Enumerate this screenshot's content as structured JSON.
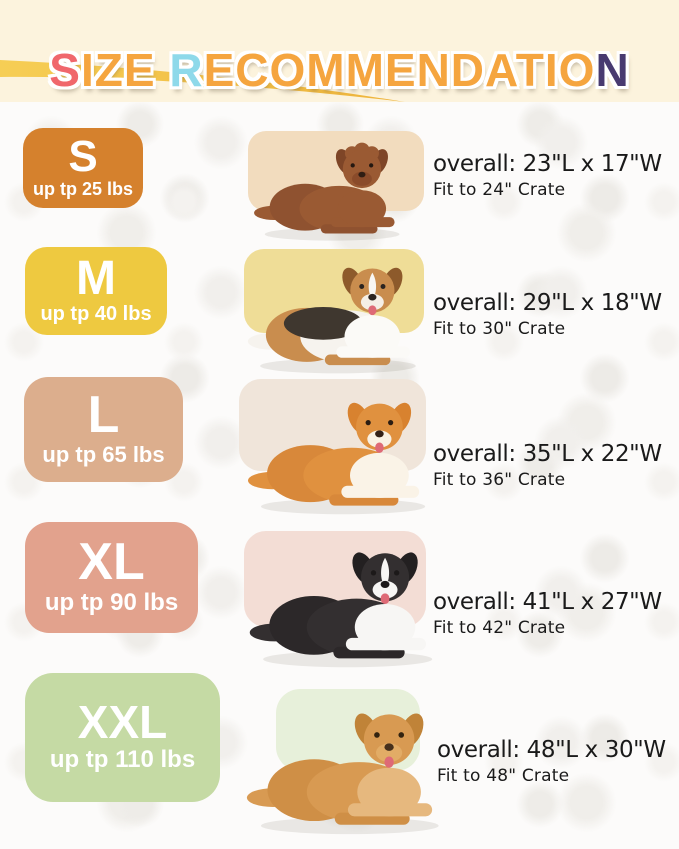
{
  "title": {
    "text": "SIZE RECOMMENDATION",
    "segments": [
      {
        "text": "S",
        "color": "#f0676c"
      },
      {
        "text": "IZE ",
        "color": "#f5a53f"
      },
      {
        "text": "R",
        "color": "#8ed9ea"
      },
      {
        "text": "ECOMMENDATIO",
        "color": "#f5a53f"
      },
      {
        "text": "N",
        "color": "#483a70"
      }
    ]
  },
  "header": {
    "background_color": "#fcf3dd",
    "swoosh_colors": [
      "#f6ce55",
      "#eeb43c"
    ]
  },
  "rows": [
    {
      "size_label": "S",
      "weight_label": "up tp 25 lbs",
      "badge_color": "#d5812d",
      "patch_color": "#f2dcbe",
      "dog_breed": "poodle",
      "dog_colors": {
        "body": "#9a5a33",
        "rear": "#8f5230",
        "chest": "#9a5a33",
        "head": "#9a5a33",
        "ear": "#7e4527",
        "muzzle": "#8a4b2a",
        "nose": "#2f1d13",
        "eye": "#241811",
        "fluff": "#9a5a33"
      },
      "overall": "overall: 23\"L x 17\"W",
      "fit": "Fit to 24\" Crate"
    },
    {
      "size_label": "M",
      "weight_label": "up tp 40 lbs",
      "badge_color": "#eec940",
      "patch_color": "#efdd97",
      "dog_breed": "beagle",
      "dog_colors": {
        "body": "#f6f3ee",
        "rear": "#c98d4e",
        "chest": "#fbfaf7",
        "saddle": "#3f372f",
        "head": "#c98d4e",
        "ear": "#8d5a2b",
        "blaze": "#f8f6f2",
        "muzzle": "#f5efe6",
        "nose": "#2b2420",
        "eye": "#2b2420",
        "tongue": "#de6a76"
      },
      "overall": "overall: 29\"L x 18\"W",
      "fit": "Fit to 30\" Crate"
    },
    {
      "size_label": "L",
      "weight_label": "up tp 65 lbs",
      "badge_color": "#dcae8d",
      "patch_color": "#f0e5da",
      "dog_breed": "shiba-inu",
      "dog_colors": {
        "body": "#e0913f",
        "rear": "#d8883a",
        "chest": "#faf3e7",
        "head": "#e0913f",
        "ear": "#d8822f",
        "muzzle": "#f9f1e3",
        "nose": "#332117",
        "eye": "#2a1c12",
        "tongue": "#de6a76"
      },
      "overall": "overall: 35\"L x 22\"W",
      "fit": "Fit to 36\" Crate"
    },
    {
      "size_label": "XL",
      "weight_label": "up tp 90 lbs",
      "badge_color": "#e2a28d",
      "patch_color": "#f3ddd5",
      "dog_breed": "border-collie",
      "dog_colors": {
        "body": "#332f30",
        "rear": "#2c2829",
        "chest": "#f7f6f4",
        "head": "#332f30",
        "ear": "#232021",
        "blaze": "#f7f6f4",
        "muzzle": "#f7f6f4",
        "nose": "#1c1919",
        "eye": "#1c1919",
        "tongue": "#de6a76"
      },
      "overall": "overall: 41\"L x 27\"W",
      "fit": "Fit to 42\" Crate"
    },
    {
      "size_label": "XXL",
      "weight_label": "up tp 110 lbs",
      "badge_color": "#c5daa4",
      "patch_color": "#e7f0da",
      "dog_breed": "golden-retriever",
      "dog_colors": {
        "body": "#d89a52",
        "rear": "#cf8f46",
        "chest": "#e6b87e",
        "head": "#d89a52",
        "ear": "#c08338",
        "muzzle": "#e2ac66",
        "nose": "#46301c",
        "eye": "#33230f",
        "tongue": "#de6a76"
      },
      "overall": "overall: 48\"L x 30\"W",
      "fit": "Fit to 48\" Crate"
    }
  ]
}
